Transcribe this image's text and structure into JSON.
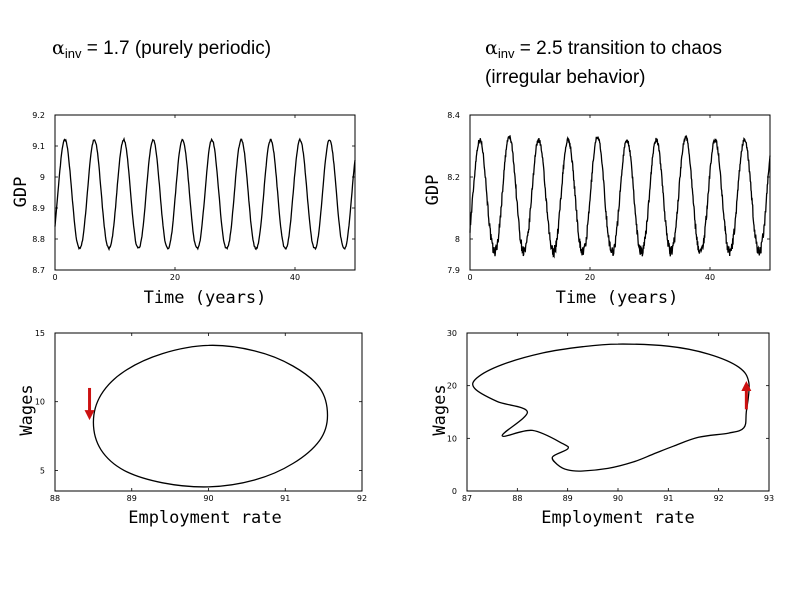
{
  "titles": {
    "left": {
      "symbol": "α",
      "sub": "inv",
      "text": " = 1.7 (purely periodic)"
    },
    "right": {
      "symbol": "α",
      "sub": "inv",
      "text": " = 2.5 transition to chaos",
      "line2": "(irregular behavior)"
    }
  },
  "colors": {
    "arrow": "#cc1111",
    "line": "#000000"
  },
  "chart_data": [
    {
      "id": "gdp-periodic",
      "type": "line",
      "title": "",
      "xlabel": "Time (years)",
      "ylabel": "GDP",
      "xlim": [
        0,
        50
      ],
      "ylim": [
        8.7,
        9.2
      ],
      "xticks": [
        0,
        20,
        40
      ],
      "xtick_labels": [
        "0",
        "20",
        "40"
      ],
      "yticks": [
        8.7,
        8.8,
        8.9,
        9.0,
        9.1,
        9.2
      ],
      "ytick_labels": [
        "8.7",
        "8.8",
        "8.9",
        "9",
        "9.1",
        "9.2"
      ],
      "period_years": 4.9,
      "peaks_at_years": [
        4.1,
        9.0,
        13.9,
        18.8,
        23.7,
        28.6,
        33.5,
        38.4,
        43.3,
        48.2
      ],
      "peak_value": 9.12,
      "trough_value": 8.77
    },
    {
      "id": "gdp-irregular",
      "type": "line",
      "title": "",
      "xlabel": "Time (years)",
      "ylabel": "GDP",
      "xlim": [
        0,
        50
      ],
      "ylim": [
        7.9,
        8.4
      ],
      "xticks": [
        0,
        20,
        40
      ],
      "xtick_labels": [
        "0",
        "20",
        "40"
      ],
      "yticks": [
        7.9,
        8.0,
        8.2,
        8.4
      ],
      "ytick_labels": [
        "7.9",
        "8",
        "8.2",
        "8.4"
      ],
      "period_years": 4.9,
      "peak_value": 8.32,
      "trough_value": 7.96
    },
    {
      "id": "phase-periodic",
      "type": "line",
      "title": "",
      "xlabel": "Employment rate",
      "ylabel": "Wages",
      "xlim": [
        88,
        92
      ],
      "ylim": [
        3.5,
        15
      ],
      "xticks": [
        88,
        89,
        90,
        91,
        92
      ],
      "xtick_labels": [
        "88",
        "89",
        "90",
        "91",
        "92"
      ],
      "yticks": [
        5,
        10,
        15
      ],
      "ytick_labels": [
        "5",
        "10",
        "15"
      ],
      "orbit": {
        "x": [
          90.0,
          90.6,
          91.1,
          91.45,
          91.55,
          91.45,
          91.1,
          90.6,
          90.0,
          89.4,
          88.9,
          88.6,
          88.5,
          88.6,
          88.9,
          89.4,
          90.0
        ],
        "y": [
          14.1,
          13.7,
          12.6,
          11.0,
          9.0,
          7.2,
          5.5,
          4.3,
          3.8,
          4.1,
          5.0,
          6.5,
          8.5,
          10.5,
          12.2,
          13.5,
          14.1
        ]
      },
      "arrow": {
        "x": 88.45,
        "from_y": 11.0,
        "to_y": 8.8,
        "direction": "down"
      }
    },
    {
      "id": "phase-irregular",
      "type": "line",
      "title": "",
      "xlabel": "Employment rate",
      "ylabel": "Wages",
      "xlim": [
        87,
        93
      ],
      "ylim": [
        0,
        30
      ],
      "xticks": [
        87,
        88,
        89,
        90,
        91,
        92,
        93
      ],
      "xtick_labels": [
        "87",
        "88",
        "89",
        "90",
        "91",
        "92",
        "93"
      ],
      "yticks": [
        0,
        10,
        20,
        30
      ],
      "ytick_labels": [
        "0",
        "10",
        "20",
        "30"
      ],
      "orbit": {
        "x": [
          90.0,
          91.0,
          91.8,
          92.4,
          92.6,
          92.55,
          92.5,
          92.2,
          91.6,
          91.1,
          90.7,
          90.3,
          89.8,
          89.3,
          89.0,
          88.8,
          88.7,
          89.0,
          88.9,
          88.3,
          87.7,
          88.2,
          87.6,
          87.15,
          87.2,
          87.7,
          88.5,
          89.3,
          90.0
        ],
        "y": [
          27.9,
          27.5,
          26.0,
          23.5,
          20.5,
          15.0,
          12.0,
          11.0,
          10.2,
          8.5,
          7.0,
          5.5,
          4.3,
          3.8,
          4.0,
          5.0,
          6.5,
          8.0,
          9.0,
          11.5,
          10.5,
          15.0,
          17.0,
          19.5,
          21.5,
          24.0,
          26.2,
          27.4,
          27.9
        ]
      },
      "arrow": {
        "x": 92.55,
        "from_y": 15.5,
        "to_y": 20.5,
        "direction": "up"
      }
    }
  ]
}
